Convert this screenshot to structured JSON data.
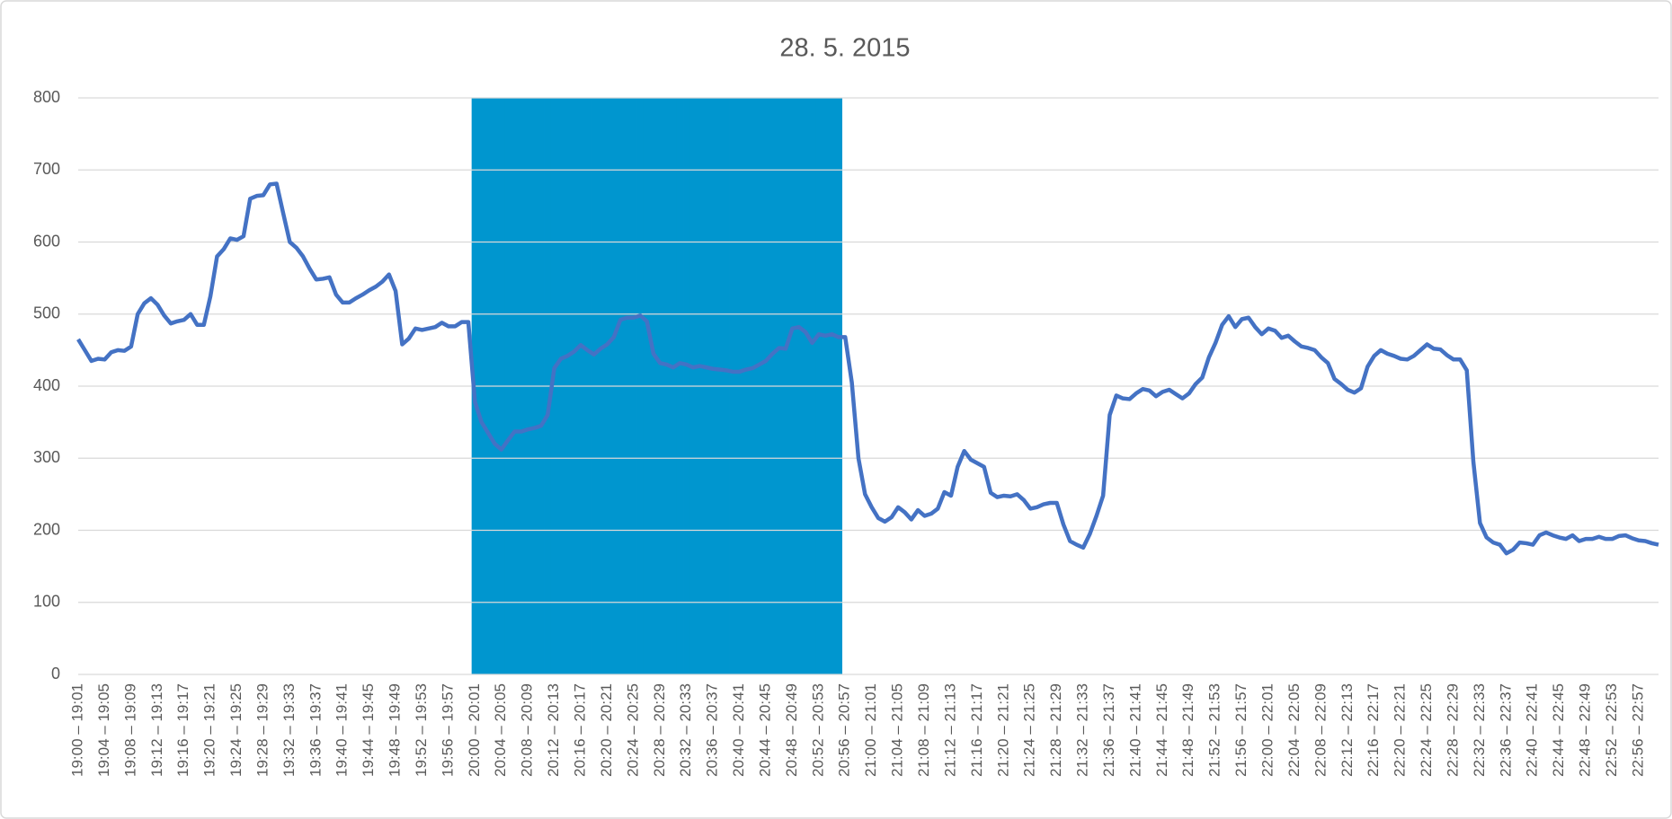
{
  "chart_data": {
    "type": "line",
    "title": "28. 5. 2015",
    "categories": [
      "19:00 – 19:01",
      null,
      null,
      null,
      "19:04 – 19:05",
      null,
      null,
      null,
      "19:08 – 19:09",
      null,
      null,
      null,
      "19:12 – 19:13",
      null,
      null,
      null,
      "19:16 – 19:17",
      null,
      null,
      null,
      "19:20 – 19:21",
      null,
      null,
      null,
      "19:24 – 19:25",
      null,
      null,
      null,
      "19:28 – 19:29",
      null,
      null,
      null,
      "19:32 – 19:33",
      null,
      null,
      null,
      "19:36 – 19:37",
      null,
      null,
      null,
      "19:40 – 19:41",
      null,
      null,
      null,
      "19:44 – 19:45",
      null,
      null,
      null,
      "19:48 – 19:49",
      null,
      null,
      null,
      "19:52 – 19:53",
      null,
      null,
      null,
      "19:56 – 19:57",
      null,
      null,
      null,
      "20:00 – 20:01",
      null,
      null,
      null,
      "20:04 – 20:05",
      null,
      null,
      null,
      "20:08 – 20:09",
      null,
      null,
      null,
      "20:12 – 20:13",
      null,
      null,
      null,
      "20:16 – 20:17",
      null,
      null,
      null,
      "20:20 – 20:21",
      null,
      null,
      null,
      "20:24 – 20:25",
      null,
      null,
      null,
      "20:28 – 20:29",
      null,
      null,
      null,
      "20:32 – 20:33",
      null,
      null,
      null,
      "20:36 – 20:37",
      null,
      null,
      null,
      "20:40 – 20:41",
      null,
      null,
      null,
      "20:44 – 20:45",
      null,
      null,
      null,
      "20:48 – 20:49",
      null,
      null,
      null,
      "20:52 – 20:53",
      null,
      null,
      null,
      "20:56 – 20:57",
      null,
      null,
      null,
      "21:00 – 21:01",
      null,
      null,
      null,
      "21:04 – 21:05",
      null,
      null,
      null,
      "21:08 – 21:09",
      null,
      null,
      null,
      "21:12 – 21:13",
      null,
      null,
      null,
      "21:16 – 21:17",
      null,
      null,
      null,
      "21:20 – 21:21",
      null,
      null,
      null,
      "21:24 – 21:25",
      null,
      null,
      null,
      "21:28 – 21:29",
      null,
      null,
      null,
      "21:32 – 21:33",
      null,
      null,
      null,
      "21:36 – 21:37",
      null,
      null,
      null,
      "21:40 – 21:41",
      null,
      null,
      null,
      "21:44 – 21:45",
      null,
      null,
      null,
      "21:48 – 21:49",
      null,
      null,
      null,
      "21:52 – 21:53",
      null,
      null,
      null,
      "21:56 – 21:57",
      null,
      null,
      null,
      "22:00 – 22:01",
      null,
      null,
      null,
      "22:04 – 22:05",
      null,
      null,
      null,
      "22:08 – 22:09",
      null,
      null,
      null,
      "22:12 – 22:13",
      null,
      null,
      null,
      "22:16 – 22:17",
      null,
      null,
      null,
      "22:20 – 22:21",
      null,
      null,
      null,
      "22:24 – 22:25",
      null,
      null,
      null,
      "22:28 – 22:29",
      null,
      null,
      null,
      "22:32 – 22:33",
      null,
      null,
      null,
      "22:36 – 22:37",
      null,
      null,
      null,
      "22:40 – 22:41",
      null,
      null,
      null,
      "22:44 – 22:45",
      null,
      null,
      null,
      "22:48 – 22:49",
      null,
      null,
      null,
      "22:52 – 22:53",
      null,
      null,
      null,
      "22:56 – 22:57",
      null,
      null,
      null
    ],
    "series": [
      {
        "type": "bar",
        "color": "#0096cf",
        "values": [
          null,
          null,
          null,
          null,
          null,
          null,
          null,
          null,
          null,
          null,
          null,
          null,
          null,
          null,
          null,
          null,
          null,
          null,
          null,
          null,
          null,
          null,
          null,
          null,
          null,
          null,
          null,
          null,
          null,
          null,
          null,
          null,
          null,
          null,
          null,
          null,
          null,
          null,
          null,
          null,
          null,
          null,
          null,
          null,
          null,
          null,
          null,
          null,
          null,
          null,
          null,
          null,
          null,
          null,
          null,
          null,
          null,
          null,
          null,
          null,
          800,
          800,
          800,
          800,
          800,
          800,
          800,
          800,
          800,
          800,
          800,
          800,
          800,
          800,
          800,
          800,
          800,
          800,
          800,
          800,
          800,
          800,
          800,
          800,
          800,
          800,
          800,
          800,
          800,
          800,
          800,
          800,
          800,
          800,
          800,
          800,
          800,
          800,
          800,
          800,
          800,
          800,
          800,
          800,
          800,
          800,
          800,
          800,
          800,
          800,
          800,
          800,
          800,
          800,
          800,
          800,
          null,
          null,
          null,
          null,
          null,
          null,
          null,
          null,
          null,
          null,
          null,
          null,
          null,
          null,
          null,
          null,
          null,
          null,
          null,
          null,
          null,
          null,
          null,
          null,
          null,
          null,
          null,
          null,
          null,
          null,
          null,
          null,
          null,
          null,
          null,
          null,
          null,
          null,
          null,
          null,
          null,
          null,
          null,
          null,
          null,
          null,
          null,
          null,
          null,
          null,
          null,
          null,
          null,
          null,
          null,
          null,
          null,
          null,
          null,
          null,
          null,
          null,
          null,
          null,
          null,
          null,
          null,
          null,
          null,
          null,
          null,
          null,
          null,
          null,
          null,
          null,
          null,
          null,
          null,
          null,
          null,
          null,
          null,
          null,
          null,
          null,
          null,
          null,
          null,
          null,
          null,
          null,
          null,
          null,
          null,
          null,
          null,
          null,
          null,
          null,
          null,
          null,
          null,
          null,
          null,
          null,
          null,
          null,
          null,
          null,
          null,
          null,
          null,
          null,
          null,
          null,
          null,
          null,
          null,
          null,
          null,
          null,
          null,
          null
        ]
      },
      {
        "type": "line",
        "color": "#4472c4",
        "values": [
          465,
          450,
          435,
          438,
          437,
          447,
          450,
          449,
          455,
          500,
          515,
          522,
          513,
          498,
          487,
          490,
          492,
          500,
          485,
          485,
          525,
          580,
          590,
          605,
          603,
          608,
          660,
          664,
          665,
          680,
          681,
          640,
          600,
          592,
          580,
          563,
          548,
          549,
          551,
          527,
          516,
          516,
          522,
          527,
          533,
          538,
          545,
          555,
          532,
          458,
          466,
          480,
          478,
          480,
          482,
          488,
          483,
          483,
          489,
          489,
          378,
          350,
          335,
          320,
          312,
          325,
          337,
          337,
          340,
          342,
          345,
          360,
          425,
          438,
          442,
          448,
          457,
          450,
          444,
          452,
          458,
          468,
          492,
          495,
          495,
          498,
          490,
          445,
          432,
          430,
          426,
          432,
          430,
          426,
          428,
          426,
          424,
          423,
          422,
          420,
          420,
          423,
          425,
          430,
          435,
          445,
          453,
          452,
          480,
          482,
          475,
          460,
          472,
          470,
          472,
          468,
          468,
          405,
          300,
          250,
          232,
          217,
          212,
          218,
          232,
          225,
          215,
          228,
          220,
          223,
          230,
          253,
          248,
          288,
          310,
          298,
          293,
          288,
          252,
          246,
          248,
          247,
          250,
          242,
          230,
          232,
          236,
          238,
          238,
          208,
          185,
          180,
          176,
          195,
          220,
          248,
          360,
          387,
          383,
          382,
          390,
          396,
          394,
          386,
          392,
          395,
          389,
          383,
          390,
          403,
          412,
          440,
          460,
          485,
          497,
          482,
          493,
          495,
          482,
          472,
          480,
          477,
          467,
          470,
          462,
          455,
          453,
          450,
          440,
          432,
          410,
          403,
          395,
          391,
          397,
          427,
          442,
          450,
          445,
          442,
          438,
          437,
          442,
          450,
          458,
          452,
          451,
          443,
          437,
          437,
          422,
          295,
          210,
          190,
          183,
          180,
          168,
          173,
          183,
          182,
          180,
          193,
          197,
          193,
          190,
          188,
          193,
          185,
          188,
          188,
          191,
          188,
          188,
          192,
          193,
          189,
          186,
          185,
          182,
          180
        ]
      }
    ],
    "ylim": [
      0,
      800
    ],
    "yticks": [
      0,
      100,
      200,
      300,
      400,
      500,
      600,
      700,
      800
    ],
    "grid": true
  }
}
